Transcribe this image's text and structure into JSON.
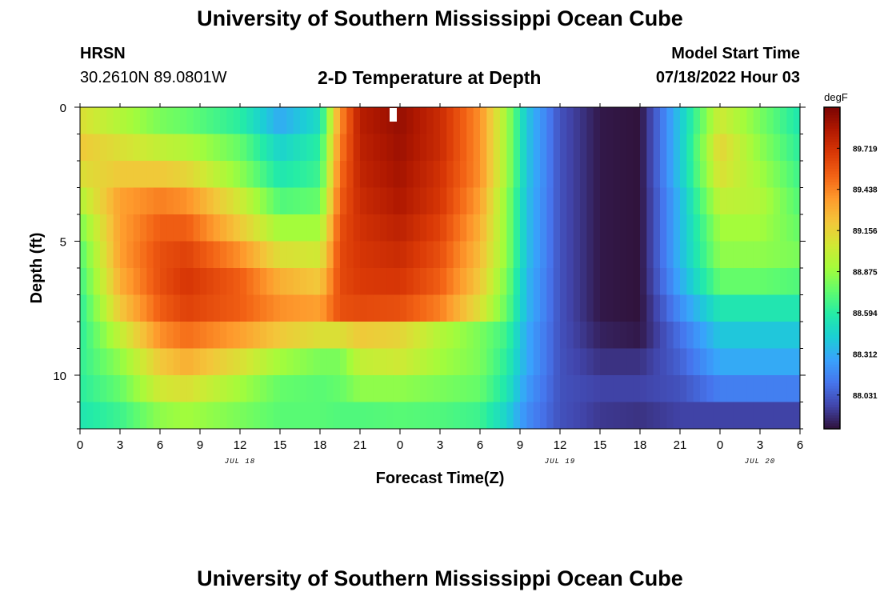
{
  "header": {
    "title": "University of Southern Mississippi Ocean Cube",
    "station": "HRSN",
    "coords": "30.2610N  89.0801W",
    "plot_title": "2-D Temperature at Depth",
    "start_label": "Model Start Time",
    "start_value": "07/18/2022 Hour 03"
  },
  "footer": {
    "title": "University of Southern Mississippi Ocean Cube"
  },
  "chart_data": {
    "type": "heatmap",
    "title": "2-D Temperature at Depth",
    "xlabel": "Forecast Time(Z)",
    "ylabel": "Depth (ft)",
    "units": "degF",
    "x_hours": [
      0,
      3,
      6,
      9,
      12,
      15,
      18,
      21,
      24,
      27,
      30,
      33,
      36,
      39,
      42,
      45,
      48,
      51,
      54
    ],
    "x_tick_labels": [
      "0",
      "3",
      "6",
      "9",
      "12",
      "15",
      "18",
      "21",
      "0",
      "3",
      "6",
      "9",
      "12",
      "15",
      "18",
      "21",
      "0",
      "3",
      "6"
    ],
    "date_labels": [
      {
        "text": "JUL 18",
        "hour": 12
      },
      {
        "text": "JUL 19",
        "hour": 36
      },
      {
        "text": "JUL 20",
        "hour": 51
      }
    ],
    "y_tick_labels": [
      "0",
      "5",
      "10"
    ],
    "y_ticks": [
      0,
      5,
      10
    ],
    "ylim": [
      0,
      12
    ],
    "xlim": [
      0,
      54
    ],
    "colorbar_ticks": [
      "89.719",
      "89.438",
      "89.156",
      "88.875",
      "88.594",
      "88.312",
      "88.031"
    ],
    "colorbar_range": [
      87.8,
      90.0
    ],
    "depth_levels": [
      0.5,
      1.5,
      2.5,
      3.5,
      4.5,
      5.5,
      6.5,
      7.5,
      8.5,
      9.5,
      10.5,
      11.5
    ],
    "time_knots": [
      0,
      3,
      6,
      8,
      12,
      15,
      18,
      19.5,
      21,
      24,
      27,
      30,
      32,
      33.5,
      36,
      39,
      42,
      45,
      48,
      51,
      54
    ],
    "values": [
      [
        89.1,
        88.95,
        88.8,
        88.75,
        88.6,
        88.3,
        88.5,
        89.4,
        89.82,
        89.92,
        89.75,
        89.4,
        88.9,
        88.4,
        88.0,
        87.82,
        87.8,
        88.4,
        89.05,
        88.8,
        88.55
      ],
      [
        89.2,
        89.1,
        89.0,
        88.95,
        88.75,
        88.45,
        88.6,
        89.45,
        89.8,
        89.9,
        89.75,
        89.4,
        88.9,
        88.4,
        88.0,
        87.82,
        87.8,
        88.4,
        89.15,
        88.85,
        88.6
      ],
      [
        89.1,
        89.2,
        89.2,
        89.15,
        88.85,
        88.55,
        88.65,
        89.5,
        89.78,
        89.88,
        89.72,
        89.4,
        88.9,
        88.4,
        88.0,
        87.82,
        87.8,
        88.4,
        89.1,
        88.9,
        88.65
      ],
      [
        88.95,
        89.35,
        89.45,
        89.4,
        89.05,
        88.7,
        88.75,
        89.55,
        89.75,
        89.85,
        89.7,
        89.35,
        88.85,
        88.38,
        88.0,
        87.82,
        87.8,
        88.35,
        89.0,
        88.95,
        88.7
      ],
      [
        88.8,
        89.35,
        89.55,
        89.55,
        89.2,
        88.9,
        88.9,
        89.6,
        89.72,
        89.8,
        89.65,
        89.3,
        88.85,
        88.38,
        88.0,
        87.82,
        87.8,
        88.35,
        88.9,
        88.9,
        88.75
      ],
      [
        88.7,
        89.35,
        89.6,
        89.65,
        89.4,
        89.1,
        89.05,
        89.62,
        89.7,
        89.75,
        89.6,
        89.25,
        88.85,
        88.38,
        88.0,
        87.82,
        87.8,
        88.35,
        88.85,
        88.85,
        88.8
      ],
      [
        88.65,
        89.3,
        89.6,
        89.7,
        89.55,
        89.3,
        89.2,
        89.62,
        89.68,
        89.7,
        89.55,
        89.2,
        88.8,
        88.35,
        88.0,
        87.82,
        87.8,
        88.3,
        88.75,
        88.75,
        88.7
      ],
      [
        88.6,
        89.2,
        89.55,
        89.65,
        89.55,
        89.4,
        89.35,
        89.6,
        89.62,
        89.6,
        89.45,
        89.1,
        88.75,
        88.35,
        88.0,
        87.82,
        87.8,
        88.2,
        88.55,
        88.55,
        88.55
      ],
      [
        88.6,
        89.0,
        89.4,
        89.5,
        89.35,
        89.2,
        89.1,
        89.1,
        89.2,
        89.15,
        88.95,
        88.8,
        88.65,
        88.3,
        88.0,
        87.85,
        87.82,
        88.1,
        88.4,
        88.4,
        88.4
      ],
      [
        88.62,
        88.85,
        89.2,
        89.3,
        89.1,
        88.9,
        88.8,
        88.8,
        89.0,
        89.05,
        88.9,
        88.8,
        88.6,
        88.3,
        88.0,
        87.9,
        87.9,
        88.05,
        88.3,
        88.3,
        88.3
      ],
      [
        88.6,
        88.75,
        89.05,
        89.1,
        88.9,
        88.75,
        88.72,
        88.75,
        88.85,
        88.85,
        88.8,
        88.75,
        88.55,
        88.25,
        88.0,
        87.95,
        87.95,
        88.0,
        88.15,
        88.15,
        88.15
      ],
      [
        88.55,
        88.65,
        88.85,
        88.9,
        88.8,
        88.72,
        88.72,
        88.7,
        88.7,
        88.72,
        88.7,
        88.65,
        88.45,
        88.2,
        88.0,
        87.92,
        87.9,
        87.95,
        87.95,
        87.95,
        87.95
      ]
    ]
  },
  "palette": [
    "#30123b",
    "#4145ab",
    "#4675ed",
    "#39a2fc",
    "#1bcfd4",
    "#24eca6",
    "#61fc6c",
    "#a4fc3b",
    "#d1e834",
    "#f3c63a",
    "#fe9b2d",
    "#f36315",
    "#d93806",
    "#b11901",
    "#7a0403"
  ]
}
